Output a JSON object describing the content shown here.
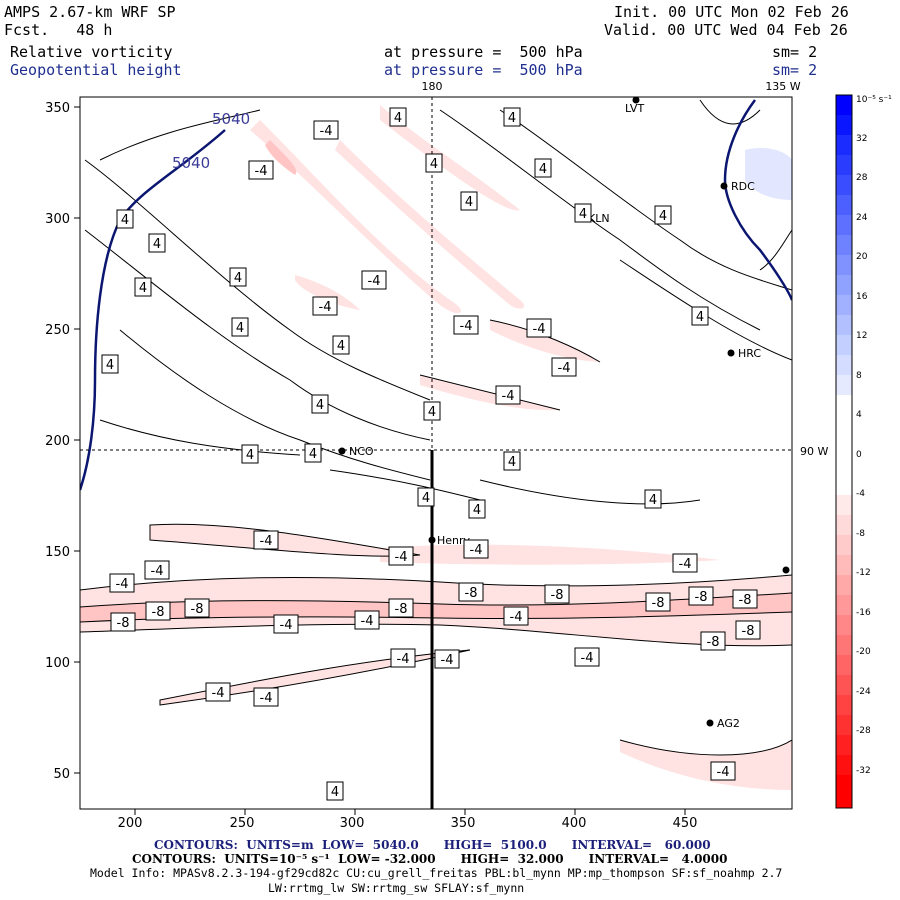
{
  "header": {
    "model": "AMPS 2.67-km WRF SP",
    "fcst": "Fcst.   48 h",
    "init": "Init. 00 UTC Mon 02 Feb 26",
    "valid": "Valid. 00 UTC Wed 04 Feb 26",
    "field1": "Relative vorticity",
    "field2": "Geopotential height",
    "pressure1": "at pressure =  500 hPa",
    "pressure2": "at pressure =  500 hPa",
    "sm1": "sm= 2",
    "sm2": "sm= 2"
  },
  "map": {
    "lon_labels": {
      "top_180": "180",
      "top_135w": "135 W",
      "right_90w": "90 W"
    },
    "stations": [
      "LVT",
      "RDC",
      "KLN",
      "HRC",
      "NCO",
      "Henry",
      "AG2"
    ],
    "x_ticks": [
      "200",
      "250",
      "300",
      "350",
      "400",
      "450"
    ],
    "y_ticks": [
      "350",
      "300",
      "250",
      "200",
      "150",
      "100",
      "50"
    ],
    "height_contour_labels": [
      "5040",
      "5040"
    ],
    "vort_labels_pos": [
      "4"
    ],
    "vort_labels_neg": [
      "-4",
      "-8"
    ]
  },
  "colorbar": {
    "unit": "10⁻⁵ s⁻¹",
    "ticks": [
      "32",
      "28",
      "24",
      "20",
      "16",
      "12",
      "8",
      "4",
      "0",
      "-4",
      "-8",
      "-12",
      "-16",
      "-20",
      "-24",
      "-28",
      "-32"
    ],
    "colors": [
      "#0000ff",
      "#2230ff",
      "#3c4dff",
      "#5868ff",
      "#7684ff",
      "#95a0ff",
      "#b4bcff",
      "#d8dcff",
      "#ffffff",
      "#ffffff",
      "#ffdede",
      "#ffbcbc",
      "#ff9999",
      "#ff7777",
      "#ff5555",
      "#ff3333",
      "#ff0000"
    ]
  },
  "footer": {
    "line1a": "CONTOURS:  UNITS=m  LOW=  5040.0      HIGH=  5100.0      INTERVAL=   60.000",
    "line2a": "CONTOURS:  UNITS=10⁻⁵ s⁻¹  LOW= -32.000      HIGH=  32.000      INTERVAL=   4.0000",
    "line3": "Model Info: MPASv8.2.3-194-gf29cd82c CU:cu_grell_freitas PBL:bl_mynn MP:mp_thompson SF:sf_noahmp 2.7",
    "line4": "LW:rrtmg_lw SW:rrtmg_sw SFLAY:sf_mynn"
  }
}
